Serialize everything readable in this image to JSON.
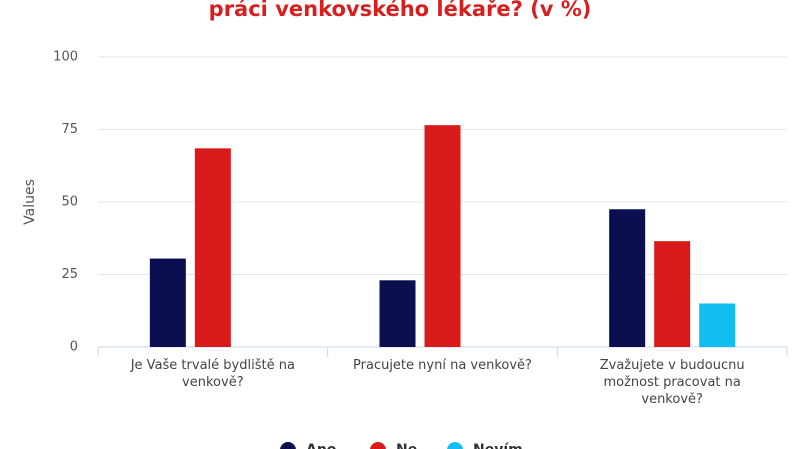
{
  "chart_data": {
    "type": "bar",
    "title": "práci venkovského lékaře? (v %)",
    "y_label": "Values",
    "categories": [
      "Je Vaše trvalé bydliště na venkově?",
      "Pracujete nyní na venkově?",
      "Zvažujete v budoucnu možnost pracovat na venkově?"
    ],
    "series": [
      {
        "name": "Ano",
        "color": "#0b0f4f",
        "values": [
          30.5,
          23,
          47.5
        ]
      },
      {
        "name": "Ne",
        "color": "#d91a1a",
        "values": [
          68.5,
          76.5,
          36.5
        ]
      },
      {
        "name": "Nevím",
        "color": "#12bdf2",
        "values": [
          null,
          null,
          15
        ]
      }
    ],
    "ylim": [
      0,
      100
    ],
    "yticks": [
      0,
      25,
      50,
      75,
      100
    ],
    "grid": true
  }
}
